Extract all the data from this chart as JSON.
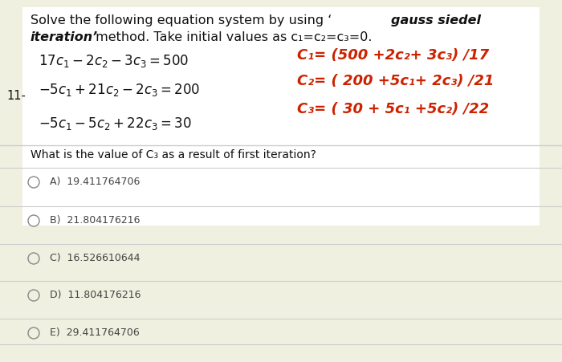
{
  "bg_color": "#f0f0e0",
  "white_box_color": "#ffffff",
  "title1_normal": "Solve the following equation system by using ‘",
  "title1_bold": "gauss siedel",
  "title2_bold": "iteration’",
  "title2_normal": " method. Take initial values as c₁=c₂=c₃=0.",
  "question_number": "11-",
  "eq1": "$17c_1-2c_2-3c_3=500$",
  "eq2": "$-5c_1+21c_2-2c_3=200$",
  "eq3": "$-5c_1-5c_2+22c_3=30$",
  "formula1_text": "C₁= (500 +2c₂+ 3c₃) /17",
  "formula2_text": "C₂= ( 200 +5c₁+ 2c₃) /21",
  "formula3_text": "C₃= ( 30 + 5c₁ +5c₂) /22",
  "question_pre": "What is the value of C",
  "question_sub": "3",
  "question_post": " as a result of first iteration?",
  "options": [
    [
      "A)",
      "19.411764706"
    ],
    [
      "B)",
      "21.804176216"
    ],
    [
      "C)",
      "16.526610644"
    ],
    [
      "D)",
      "11.804176216"
    ],
    [
      "E)",
      "29.411764706"
    ]
  ],
  "divider_color": "#cccccc",
  "formula_color": "#cc2200",
  "option_color": "#444444",
  "text_color": "#111111"
}
